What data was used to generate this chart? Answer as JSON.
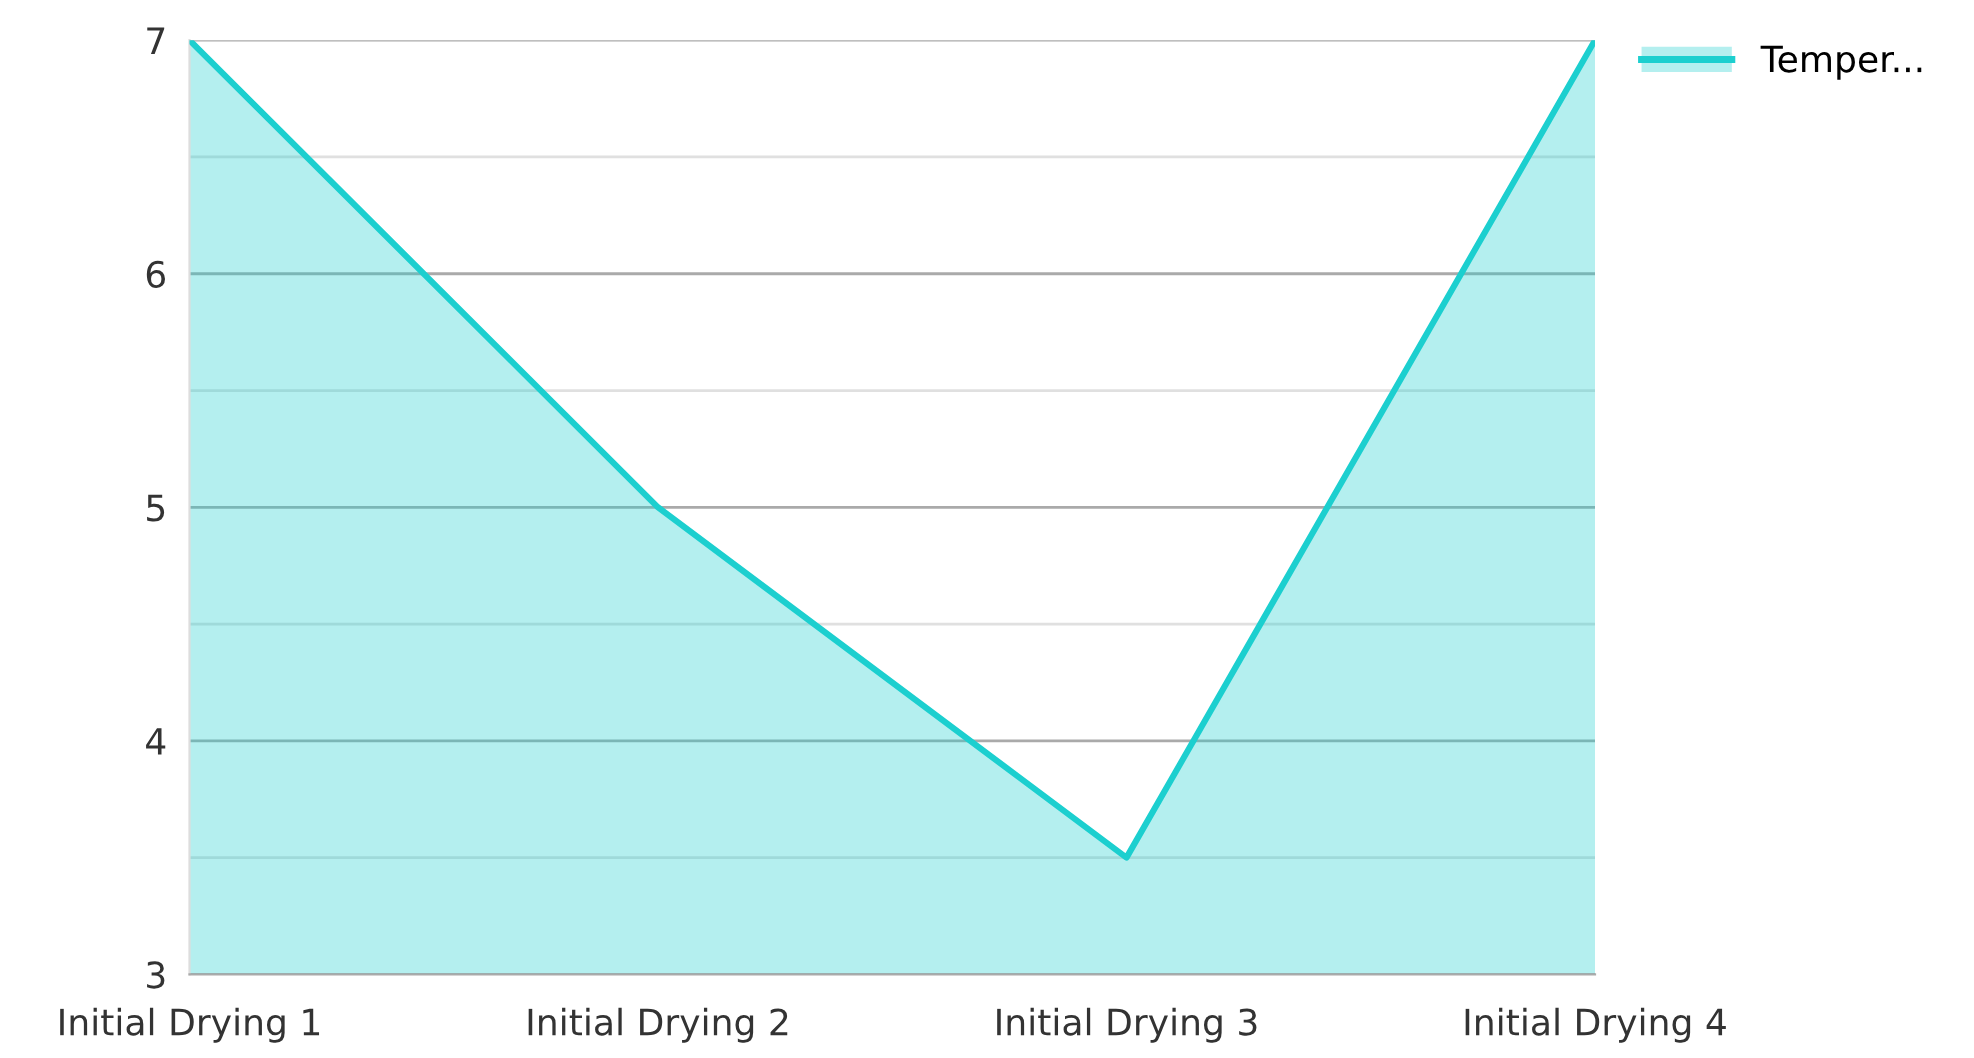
{
  "chart_data": {
    "type": "area",
    "categories": [
      "Initial Drying 1",
      "Initial Drying 2",
      "Initial Drying 3",
      "Initial Drying 4"
    ],
    "series": [
      {
        "name": "Temper...",
        "color": "#1ccfcf",
        "values": [
          7,
          5,
          3.5,
          7
        ]
      }
    ],
    "ylim": [
      3,
      7
    ],
    "yticks": [
      3,
      {
        "value": 3.5,
        "label": null
      },
      4,
      {
        "value": 4.5,
        "label": null
      },
      5,
      {
        "value": 5.5,
        "label": null
      },
      6,
      {
        "value": 6.5,
        "label": null
      },
      7
    ],
    "grid": "y",
    "legend": "top right",
    "marker": "none",
    "line_style": "solid"
  }
}
